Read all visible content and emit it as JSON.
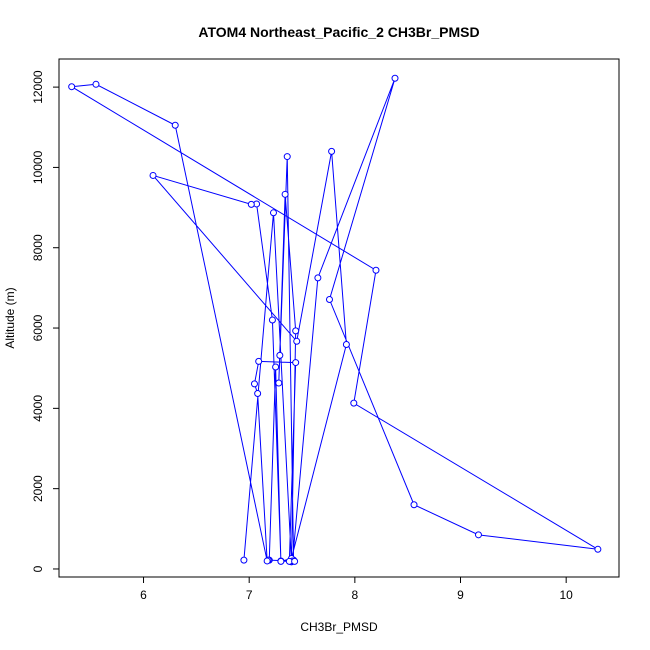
{
  "chart_data": {
    "type": "line",
    "title": "ATOM4 Northeast_Pacific_2 CH3Br_PMSD",
    "xlabel": "CH3Br_PMSD",
    "ylabel": "Altitude (m)",
    "xlim": [
      5.2,
      10.5
    ],
    "ylim": [
      -200,
      12700
    ],
    "xticks": [
      6,
      7,
      8,
      9,
      10
    ],
    "yticks": [
      0,
      2000,
      4000,
      6000,
      8000,
      10000,
      12000
    ],
    "grid": false,
    "legend": "none",
    "markers": "open-circle",
    "color": "#0000ff",
    "series": [
      {
        "x": [
          6.95,
          7.23,
          7.4,
          7.42,
          7.36,
          7.29,
          7.28,
          7.34,
          7.44,
          7.4,
          7.3,
          7.22,
          7.07,
          7.02,
          6.09,
          7.45,
          7.78,
          7.92,
          7.4,
          7.3,
          7.25,
          7.19,
          7.18,
          7.41,
          7.65,
          8.38,
          7.76,
          8.56,
          9.17,
          10.3,
          7.99,
          8.2,
          5.32,
          5.55,
          6.3,
          7.17,
          7.08,
          7.05,
          7.09,
          7.44,
          7.38,
          7.43
        ],
        "y": [
          220,
          8870,
          180,
          220,
          10270,
          5320,
          4630,
          9330,
          5930,
          180,
          200,
          6200,
          9090,
          9080,
          9800,
          5670,
          10400,
          5590,
          260,
          190,
          5030,
          220,
          220,
          200,
          7250,
          12220,
          6710,
          1600,
          850,
          490,
          4130,
          7440,
          12010,
          12070,
          11050,
          200,
          4370,
          4610,
          5170,
          5140,
          190,
          190
        ]
      }
    ]
  }
}
